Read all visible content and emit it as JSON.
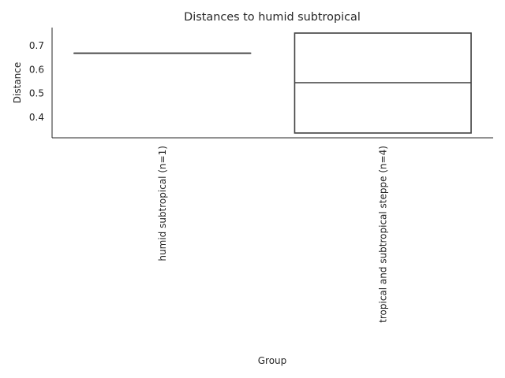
{
  "chart_data": {
    "type": "box",
    "title": "Distances to humid subtropical",
    "xlabel": "Group",
    "ylabel": "Distance",
    "categories": [
      "humid subtropical (n=1)",
      "tropical and subtropical steppe (n=4)"
    ],
    "boxes": [
      {
        "q1": 0.668,
        "median": 0.668,
        "q3": 0.668
      },
      {
        "q1": 0.335,
        "median": 0.545,
        "q3": 0.752
      }
    ],
    "ylim": [
      0.315,
      0.775
    ],
    "yticks": [
      0.4,
      0.5,
      0.6,
      0.7
    ],
    "ytick_labels": [
      "0.4",
      "0.5",
      "0.6",
      "0.7"
    ],
    "grid": false
  }
}
